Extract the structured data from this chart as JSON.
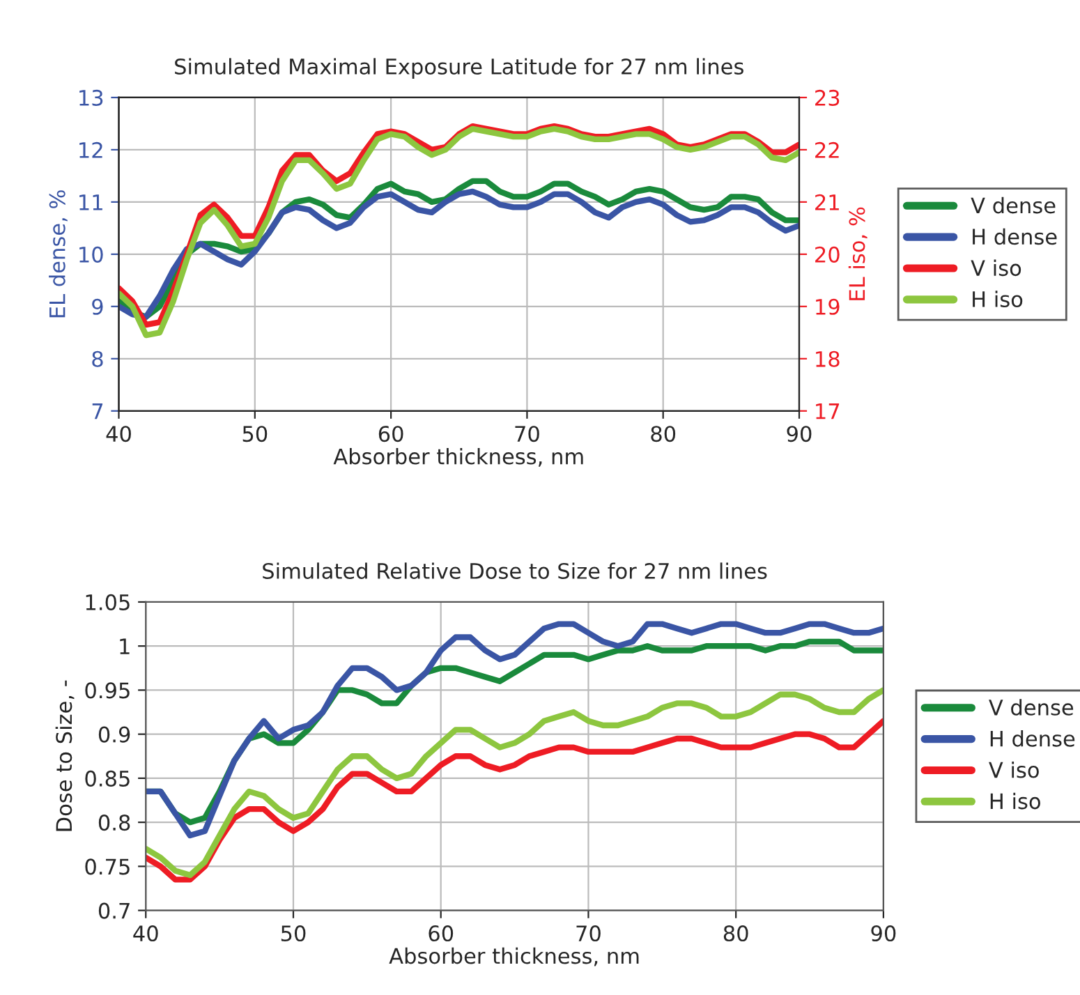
{
  "chart_data": [
    {
      "type": "line",
      "title": "Simulated Maximal Exposure Latitude for 27 nm lines",
      "xlabel": "Absorber thickness, nm",
      "ylabel": "EL dense, %",
      "y2label": "EL iso, %",
      "x": [
        40,
        41,
        42,
        43,
        44,
        45,
        46,
        47,
        48,
        49,
        50,
        51,
        52,
        53,
        54,
        55,
        56,
        57,
        58,
        59,
        60,
        61,
        62,
        63,
        64,
        65,
        66,
        67,
        68,
        69,
        70,
        71,
        72,
        73,
        74,
        75,
        76,
        77,
        78,
        79,
        80,
        81,
        82,
        83,
        84,
        85,
        86,
        87,
        88,
        89,
        90
      ],
      "xlim": [
        40,
        90
      ],
      "xticks": [
        40,
        50,
        60,
        70,
        80,
        90
      ],
      "ylim": [
        7,
        13
      ],
      "yticks": [
        7,
        8,
        9,
        10,
        11,
        12,
        13
      ],
      "y2lim": [
        17,
        23
      ],
      "y2ticks": [
        17,
        18,
        19,
        20,
        21,
        22,
        23
      ],
      "grid": true,
      "legend": "right",
      "marker": "none",
      "line_style": "solid",
      "series": [
        {
          "name": "V dense",
          "color": "#1a8a3c",
          "values": [
            9.1,
            8.9,
            8.8,
            9.0,
            9.5,
            10.0,
            10.2,
            10.2,
            10.15,
            10.05,
            10.1,
            10.4,
            10.8,
            11.0,
            11.05,
            10.95,
            10.75,
            10.7,
            10.95,
            11.25,
            11.35,
            11.2,
            11.15,
            11.0,
            11.05,
            11.25,
            11.4,
            11.4,
            11.2,
            11.1,
            11.1,
            11.2,
            11.35,
            11.35,
            11.2,
            11.1,
            10.95,
            11.05,
            11.2,
            11.25,
            11.2,
            11.05,
            10.9,
            10.85,
            10.9,
            11.1,
            11.1,
            11.05,
            10.8,
            10.65,
            10.65
          ]
        },
        {
          "name": "H dense",
          "color": "#3a55a5",
          "values": [
            9.0,
            8.85,
            8.8,
            9.2,
            9.7,
            10.1,
            10.2,
            10.05,
            9.9,
            9.8,
            10.05,
            10.4,
            10.8,
            10.9,
            10.85,
            10.65,
            10.5,
            10.6,
            10.9,
            11.1,
            11.15,
            11.0,
            10.85,
            10.8,
            11.0,
            11.15,
            11.2,
            11.1,
            10.95,
            10.9,
            10.9,
            11.0,
            11.15,
            11.15,
            11.0,
            10.8,
            10.7,
            10.9,
            11.0,
            11.05,
            10.95,
            10.75,
            10.62,
            10.65,
            10.75,
            10.9,
            10.9,
            10.8,
            10.6,
            10.45,
            10.55
          ]
        },
        {
          "name": "V iso",
          "color": "#ee1c24",
          "axis": "y2",
          "values": [
            19.35,
            19.1,
            18.65,
            18.7,
            19.3,
            20.0,
            20.75,
            20.95,
            20.7,
            20.35,
            20.35,
            20.9,
            21.6,
            21.9,
            21.9,
            21.6,
            21.4,
            21.55,
            21.95,
            22.3,
            22.35,
            22.3,
            22.15,
            22.0,
            22.05,
            22.3,
            22.45,
            22.4,
            22.35,
            22.3,
            22.3,
            22.4,
            22.45,
            22.4,
            22.3,
            22.25,
            22.25,
            22.3,
            22.35,
            22.4,
            22.3,
            22.1,
            22.05,
            22.1,
            22.2,
            22.3,
            22.3,
            22.15,
            21.95,
            21.95,
            22.1
          ]
        },
        {
          "name": "H iso",
          "color": "#8dc63f",
          "axis": "y2",
          "values": [
            19.25,
            19.0,
            18.45,
            18.5,
            19.1,
            19.9,
            20.6,
            20.85,
            20.55,
            20.15,
            20.2,
            20.7,
            21.4,
            21.8,
            21.8,
            21.55,
            21.25,
            21.35,
            21.8,
            22.2,
            22.3,
            22.25,
            22.05,
            21.9,
            22.0,
            22.25,
            22.4,
            22.35,
            22.3,
            22.25,
            22.25,
            22.35,
            22.4,
            22.35,
            22.25,
            22.2,
            22.2,
            22.25,
            22.3,
            22.3,
            22.2,
            22.05,
            22.0,
            22.05,
            22.15,
            22.25,
            22.25,
            22.1,
            21.85,
            21.8,
            21.95
          ]
        }
      ]
    },
    {
      "type": "line",
      "title": "Simulated Relative Dose to Size for 27 nm lines",
      "xlabel": "Absorber thickness, nm",
      "ylabel": "Dose to Size, -",
      "x": [
        40,
        41,
        42,
        43,
        44,
        45,
        46,
        47,
        48,
        49,
        50,
        51,
        52,
        53,
        54,
        55,
        56,
        57,
        58,
        59,
        60,
        61,
        62,
        63,
        64,
        65,
        66,
        67,
        68,
        69,
        70,
        71,
        72,
        73,
        74,
        75,
        76,
        77,
        78,
        79,
        80,
        81,
        82,
        83,
        84,
        85,
        86,
        87,
        88,
        89,
        90
      ],
      "xlim": [
        40,
        90
      ],
      "xticks": [
        40,
        50,
        60,
        70,
        80,
        90
      ],
      "ylim": [
        0.7,
        1.05
      ],
      "yticks": [
        0.7,
        0.75,
        0.8,
        0.85,
        0.9,
        0.95,
        1,
        1.05
      ],
      "grid": true,
      "legend": "right",
      "marker": "none",
      "line_style": "solid",
      "series": [
        {
          "name": "V dense",
          "color": "#1a8a3c",
          "values": [
            0.835,
            0.835,
            0.81,
            0.8,
            0.805,
            0.835,
            0.87,
            0.895,
            0.9,
            0.89,
            0.89,
            0.905,
            0.925,
            0.95,
            0.95,
            0.945,
            0.935,
            0.935,
            0.955,
            0.97,
            0.975,
            0.975,
            0.97,
            0.965,
            0.96,
            0.97,
            0.98,
            0.99,
            0.99,
            0.99,
            0.985,
            0.99,
            0.995,
            0.995,
            1.0,
            0.995,
            0.995,
            0.995,
            1.0,
            1.0,
            1.0,
            1.0,
            0.995,
            1.0,
            1.0,
            1.005,
            1.005,
            1.005,
            0.995,
            0.995,
            0.995
          ]
        },
        {
          "name": "H dense",
          "color": "#3a55a5",
          "values": [
            0.835,
            0.835,
            0.81,
            0.785,
            0.79,
            0.83,
            0.87,
            0.895,
            0.915,
            0.895,
            0.905,
            0.91,
            0.925,
            0.955,
            0.975,
            0.975,
            0.965,
            0.95,
            0.955,
            0.97,
            0.995,
            1.01,
            1.01,
            0.995,
            0.985,
            0.99,
            1.005,
            1.02,
            1.025,
            1.025,
            1.015,
            1.005,
            1.0,
            1.005,
            1.025,
            1.025,
            1.02,
            1.015,
            1.02,
            1.025,
            1.025,
            1.02,
            1.015,
            1.015,
            1.02,
            1.025,
            1.025,
            1.02,
            1.015,
            1.015,
            1.02
          ]
        },
        {
          "name": "V iso",
          "color": "#ee1c24",
          "values": [
            0.76,
            0.75,
            0.735,
            0.735,
            0.75,
            0.78,
            0.805,
            0.815,
            0.815,
            0.8,
            0.79,
            0.8,
            0.815,
            0.84,
            0.855,
            0.855,
            0.845,
            0.835,
            0.835,
            0.85,
            0.865,
            0.875,
            0.875,
            0.865,
            0.86,
            0.865,
            0.875,
            0.88,
            0.885,
            0.885,
            0.88,
            0.88,
            0.88,
            0.88,
            0.885,
            0.89,
            0.895,
            0.895,
            0.89,
            0.885,
            0.885,
            0.885,
            0.89,
            0.895,
            0.9,
            0.9,
            0.895,
            0.885,
            0.885,
            0.9,
            0.915
          ]
        },
        {
          "name": "H iso",
          "color": "#8dc63f",
          "values": [
            0.77,
            0.76,
            0.745,
            0.74,
            0.755,
            0.785,
            0.815,
            0.835,
            0.83,
            0.815,
            0.805,
            0.81,
            0.835,
            0.86,
            0.875,
            0.875,
            0.86,
            0.85,
            0.855,
            0.875,
            0.89,
            0.905,
            0.905,
            0.895,
            0.885,
            0.89,
            0.9,
            0.915,
            0.92,
            0.925,
            0.915,
            0.91,
            0.91,
            0.915,
            0.92,
            0.93,
            0.935,
            0.935,
            0.93,
            0.92,
            0.92,
            0.925,
            0.935,
            0.945,
            0.945,
            0.94,
            0.93,
            0.925,
            0.925,
            0.94,
            0.95
          ]
        }
      ]
    }
  ]
}
